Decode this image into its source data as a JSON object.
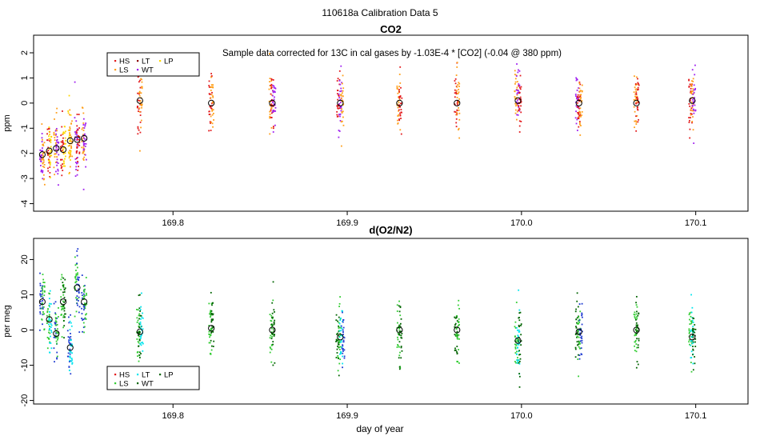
{
  "page": {
    "title": "110618a   Calibration Data 5",
    "xlabel": "day of year"
  },
  "colors": {
    "HS": "#e31a1c",
    "LS": "#ff9f1a",
    "LT": "#00e5ee",
    "WT": "#006400",
    "LP": "#ffd700",
    "purple": "#a020f0",
    "green": "#32cd32",
    "blue": "#1f3bd1"
  },
  "chart_data": [
    {
      "id": "co2",
      "type": "scatter",
      "title": "CO2",
      "annotation": "Sample data corrected for 13C in cal gases by -1.03E-4 * [CO2] (-0.04 @ 380 ppm)",
      "xlabel": "",
      "ylabel": "ppm",
      "xlim": [
        169.72,
        170.13
      ],
      "ylim": [
        -4.3,
        2.7
      ],
      "xticks": [
        169.8,
        169.9,
        170.0,
        170.1
      ],
      "xtick_labels": [
        "169.8",
        "169.9",
        "170.0",
        "170.1"
      ],
      "yticks": [
        -4,
        -3,
        -2,
        -1,
        0,
        1,
        2
      ],
      "ytick_labels": [
        "-4",
        "-3",
        "-2",
        "-1",
        "0",
        "1",
        "2"
      ],
      "legend": {
        "position": "top-left",
        "entries": [
          {
            "label": "HS",
            "color": "#e31a1c"
          },
          {
            "label": "LT",
            "color": "#8b0000"
          },
          {
            "label": "LP",
            "color": "#ffd700"
          },
          {
            "label": "LS",
            "color": "#ff9f1a"
          },
          {
            "label": "WT",
            "color": "#a020f0"
          }
        ]
      },
      "clusters": [
        {
          "x": 169.725,
          "mean": -2.05,
          "colors": [
            "purple",
            "LS"
          ]
        },
        {
          "x": 169.729,
          "mean": -1.9,
          "colors": [
            "HS",
            "LP"
          ]
        },
        {
          "x": 169.733,
          "mean": -1.8,
          "colors": [
            "LS",
            "purple"
          ]
        },
        {
          "x": 169.737,
          "mean": -1.85,
          "colors": [
            "HS",
            "LP"
          ]
        },
        {
          "x": 169.741,
          "mean": -1.5,
          "colors": [
            "LP",
            "LS"
          ]
        },
        {
          "x": 169.745,
          "mean": -1.45,
          "colors": [
            "purple",
            "HS"
          ]
        },
        {
          "x": 169.749,
          "mean": -1.4,
          "colors": [
            "LS",
            "purple"
          ]
        },
        {
          "x": 169.781,
          "mean": 0.1,
          "colors": [
            "HS",
            "LS"
          ]
        },
        {
          "x": 169.822,
          "mean": 0.0,
          "colors": [
            "HS",
            "LS"
          ]
        },
        {
          "x": 169.857,
          "mean": 0.0,
          "colors": [
            "LS",
            "HS",
            "purple"
          ]
        },
        {
          "x": 169.896,
          "mean": 0.0,
          "colors": [
            "HS",
            "purple",
            "LS"
          ]
        },
        {
          "x": 169.93,
          "mean": 0.0,
          "colors": [
            "LS",
            "HS"
          ]
        },
        {
          "x": 169.963,
          "mean": 0.0,
          "colors": [
            "HS",
            "LS"
          ]
        },
        {
          "x": 169.998,
          "mean": 0.1,
          "colors": [
            "LS",
            "purple",
            "HS"
          ]
        },
        {
          "x": 170.033,
          "mean": 0.0,
          "colors": [
            "purple",
            "HS",
            "LS"
          ]
        },
        {
          "x": 170.066,
          "mean": 0.0,
          "colors": [
            "LS",
            "HS"
          ]
        },
        {
          "x": 170.098,
          "mean": 0.1,
          "colors": [
            "HS",
            "LS",
            "purple"
          ]
        }
      ]
    },
    {
      "id": "o2n2",
      "type": "scatter",
      "title": "d(O2/N2)",
      "xlabel": "day of year",
      "ylabel": "per meg",
      "xlim": [
        169.72,
        170.13
      ],
      "ylim": [
        -21,
        26
      ],
      "xticks": [
        169.8,
        169.9,
        170.0,
        170.1
      ],
      "xtick_labels": [
        "169.8",
        "169.9",
        "170.0",
        "170.1"
      ],
      "yticks": [
        -20,
        -10,
        0,
        10,
        20
      ],
      "ytick_labels": [
        "-20",
        "-10",
        "0",
        "10",
        "20"
      ],
      "legend": {
        "position": "bottom-left",
        "entries": [
          {
            "label": "HS",
            "color": "#e31a1c"
          },
          {
            "label": "LT",
            "color": "#00e5ee"
          },
          {
            "label": "LP",
            "color": "#006400"
          },
          {
            "label": "LS",
            "color": "#32cd32"
          },
          {
            "label": "WT",
            "color": "#006400"
          }
        ]
      },
      "clusters": [
        {
          "x": 169.725,
          "mean": 8.0,
          "colors": [
            "blue",
            "green"
          ]
        },
        {
          "x": 169.729,
          "mean": 3.0,
          "colors": [
            "green",
            "LT"
          ]
        },
        {
          "x": 169.733,
          "mean": -1.0,
          "colors": [
            "blue",
            "green"
          ]
        },
        {
          "x": 169.737,
          "mean": 8.0,
          "colors": [
            "green",
            "WT"
          ]
        },
        {
          "x": 169.741,
          "mean": -5.0,
          "colors": [
            "blue",
            "LT"
          ]
        },
        {
          "x": 169.745,
          "mean": 12.0,
          "colors": [
            "green",
            "blue"
          ]
        },
        {
          "x": 169.749,
          "mean": 8.0,
          "colors": [
            "blue",
            "green"
          ]
        },
        {
          "x": 169.781,
          "mean": -0.5,
          "colors": [
            "green",
            "WT",
            "LT"
          ]
        },
        {
          "x": 169.822,
          "mean": 0.5,
          "colors": [
            "green",
            "WT"
          ]
        },
        {
          "x": 169.857,
          "mean": 0.0,
          "colors": [
            "green",
            "WT"
          ]
        },
        {
          "x": 169.896,
          "mean": -2.0,
          "colors": [
            "WT",
            "green",
            "LT",
            "blue"
          ]
        },
        {
          "x": 169.93,
          "mean": 0.0,
          "colors": [
            "green",
            "WT"
          ]
        },
        {
          "x": 169.963,
          "mean": 0.0,
          "colors": [
            "WT",
            "green"
          ]
        },
        {
          "x": 169.998,
          "mean": -3.0,
          "colors": [
            "green",
            "LT",
            "WT"
          ]
        },
        {
          "x": 170.033,
          "mean": -0.5,
          "colors": [
            "WT",
            "green",
            "blue"
          ]
        },
        {
          "x": 170.066,
          "mean": 0.0,
          "colors": [
            "green",
            "WT"
          ]
        },
        {
          "x": 170.098,
          "mean": -2.0,
          "colors": [
            "green",
            "LT",
            "WT"
          ]
        }
      ]
    }
  ]
}
